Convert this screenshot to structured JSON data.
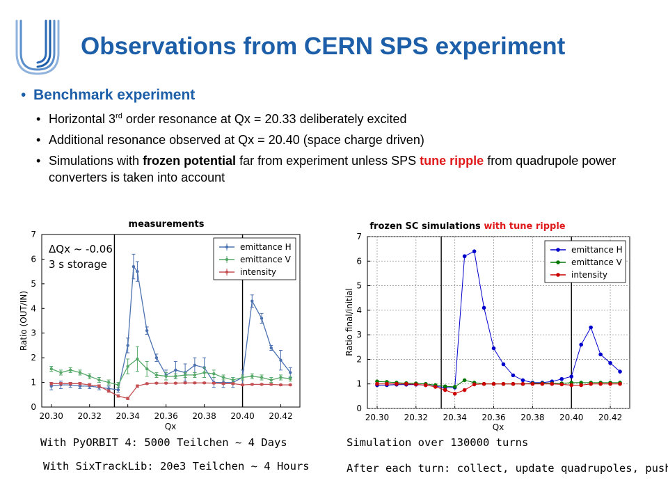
{
  "slide": {
    "title": "Observations from CERN SPS experiment",
    "bullet_main": "Benchmark experiment",
    "sub1_pre": "Horizontal 3",
    "sub1_sup": "rd",
    "sub1_post": " order resonance at Qx = 20.33 deliberately excited",
    "sub2": "Additional resonance observed at Qx = 20.40 (space charge driven)",
    "sub3_a": "Simulations with ",
    "sub3_b": "frozen potential",
    "sub3_c": " far from experiment unless SPS ",
    "sub3_d": "tune ripple",
    "sub3_e": " from quadrupole power converters is taken into account",
    "colors": {
      "title": "#1c5ea8",
      "highlight": "#e01a1a"
    }
  },
  "notes": {
    "left1": "With PyORBIT 4: 5000 Teilchen ~ 4 Days",
    "left2": "With SixTrackLib: 20e3 Teilchen ~ 4 Hours",
    "right1": "Simulation over 130000 turns",
    "right2": "After each turn: collect, update quadrupoles, push!"
  },
  "chart_data": [
    {
      "type": "line",
      "title": "measurements",
      "xlabel": "Qx",
      "ylabel": "Ratio (OUT/IN)",
      "xlim": [
        20.295,
        20.43
      ],
      "ylim": [
        0,
        7
      ],
      "xticks": [
        "20.30",
        "20.32",
        "20.34",
        "20.36",
        "20.38",
        "20.40",
        "20.42"
      ],
      "yticks": [
        "0",
        "1",
        "2",
        "3",
        "4",
        "5",
        "6",
        "7"
      ],
      "annotation_1": "ΔQx ~ -0.06",
      "annotation_2": "3 s storage",
      "vlines": [
        20.333,
        20.4
      ],
      "legend_position": "top-right",
      "series": [
        {
          "name": "emittance H",
          "color": "#4c72b0",
          "x": [
            20.3,
            20.305,
            20.31,
            20.315,
            20.32,
            20.325,
            20.33,
            20.335,
            20.34,
            20.343,
            20.345,
            20.35,
            20.355,
            20.36,
            20.365,
            20.37,
            20.375,
            20.38,
            20.385,
            20.39,
            20.395,
            20.4,
            20.405,
            20.41,
            20.415,
            20.42,
            20.425
          ],
          "y": [
            0.85,
            0.9,
            0.9,
            0.85,
            0.85,
            0.8,
            0.75,
            0.7,
            2.5,
            5.7,
            5.5,
            3.1,
            2.0,
            1.3,
            1.5,
            1.4,
            1.7,
            1.6,
            1.0,
            1.0,
            1.0,
            1.2,
            4.3,
            3.6,
            2.4,
            1.9,
            1.4
          ],
          "err": [
            0.15,
            0.15,
            0.1,
            0.1,
            0.1,
            0.1,
            0.1,
            0.1,
            0.3,
            0.5,
            0.4,
            0.15,
            0.15,
            0.2,
            0.35,
            0.35,
            0.3,
            0.4,
            0.2,
            0.2,
            0.2,
            0.3,
            0.25,
            0.2,
            0.1,
            0.4,
            0.2
          ]
        },
        {
          "name": "emittance V",
          "color": "#55a868",
          "x": [
            20.3,
            20.305,
            20.31,
            20.315,
            20.32,
            20.325,
            20.33,
            20.335,
            20.34,
            20.345,
            20.35,
            20.355,
            20.36,
            20.365,
            20.37,
            20.375,
            20.38,
            20.385,
            20.39,
            20.395,
            20.4,
            20.405,
            20.41,
            20.415,
            20.42,
            20.425
          ],
          "y": [
            1.55,
            1.4,
            1.5,
            1.4,
            1.25,
            1.1,
            1.0,
            0.9,
            1.65,
            1.95,
            1.55,
            1.3,
            1.25,
            1.25,
            1.3,
            1.3,
            1.4,
            1.35,
            1.2,
            1.1,
            1.2,
            1.25,
            1.2,
            1.1,
            1.2,
            1.15
          ],
          "err": [
            0.1,
            0.1,
            0.1,
            0.1,
            0.1,
            0.1,
            0.1,
            0.1,
            0.3,
            0.5,
            0.3,
            0.1,
            0.15,
            0.1,
            0.1,
            0.1,
            0.2,
            0.15,
            0.1,
            0.1,
            0.1,
            0.1,
            0.1,
            0.1,
            0.1,
            0.1
          ]
        },
        {
          "name": "intensity",
          "color": "#c44e52",
          "x": [
            20.3,
            20.305,
            20.31,
            20.315,
            20.32,
            20.325,
            20.33,
            20.335,
            20.34,
            20.345,
            20.35,
            20.355,
            20.36,
            20.365,
            20.37,
            20.375,
            20.38,
            20.385,
            20.39,
            20.395,
            20.4,
            20.405,
            20.41,
            20.415,
            20.42,
            20.425
          ],
          "y": [
            0.95,
            0.95,
            0.95,
            0.95,
            0.9,
            0.85,
            0.65,
            0.45,
            0.35,
            0.85,
            0.95,
            0.97,
            0.97,
            0.97,
            0.98,
            0.98,
            0.98,
            0.97,
            0.95,
            0.95,
            0.9,
            0.92,
            0.92,
            0.92,
            0.9,
            0.9
          ],
          "err": [
            0.05,
            0.05,
            0.05,
            0.05,
            0.05,
            0.05,
            0.05,
            0.05,
            0.05,
            0.05,
            0.03,
            0.03,
            0.03,
            0.03,
            0.03,
            0.03,
            0.03,
            0.03,
            0.03,
            0.03,
            0.03,
            0.03,
            0.03,
            0.03,
            0.03,
            0.03
          ]
        }
      ]
    },
    {
      "type": "line",
      "title_a": "frozen SC simulations ",
      "title_b": "with tune ripple",
      "xlabel": "Qx",
      "ylabel": "Ratio final/initial",
      "xlim": [
        20.295,
        20.43
      ],
      "ylim": [
        0,
        7
      ],
      "xticks": [
        "20.30",
        "20.32",
        "20.34",
        "20.36",
        "20.38",
        "20.40",
        "20.42"
      ],
      "yticks": [
        "0",
        "1",
        "2",
        "3",
        "4",
        "5",
        "6",
        "7"
      ],
      "vlines": [
        20.333,
        20.4
      ],
      "legend_position": "top-right",
      "series": [
        {
          "name": "emittance H",
          "color": "#0000cc",
          "x": [
            20.3,
            20.305,
            20.31,
            20.315,
            20.32,
            20.325,
            20.33,
            20.335,
            20.34,
            20.345,
            20.35,
            20.355,
            20.36,
            20.365,
            20.37,
            20.375,
            20.38,
            20.385,
            20.39,
            20.395,
            20.4,
            20.405,
            20.41,
            20.415,
            20.42,
            20.425
          ],
          "y": [
            0.95,
            0.95,
            0.97,
            0.97,
            0.97,
            0.95,
            0.9,
            0.85,
            0.85,
            6.2,
            6.4,
            4.1,
            2.45,
            1.8,
            1.35,
            1.15,
            1.05,
            1.05,
            1.1,
            1.2,
            1.3,
            2.6,
            3.3,
            2.2,
            1.85,
            1.5
          ]
        },
        {
          "name": "emittance V",
          "color": "#007700",
          "x": [
            20.3,
            20.305,
            20.31,
            20.315,
            20.32,
            20.325,
            20.33,
            20.335,
            20.34,
            20.345,
            20.35,
            20.355,
            20.36,
            20.365,
            20.37,
            20.375,
            20.38,
            20.385,
            20.39,
            20.395,
            20.4,
            20.405,
            20.41,
            20.415,
            20.42,
            20.425
          ],
          "y": [
            1.1,
            1.08,
            1.05,
            1.03,
            1.02,
            1.0,
            0.95,
            0.9,
            0.88,
            1.15,
            1.05,
            1.0,
            1.0,
            1.0,
            1.0,
            1.0,
            1.02,
            1.02,
            1.02,
            1.02,
            1.05,
            1.05,
            1.05,
            1.05,
            1.05,
            1.05
          ]
        },
        {
          "name": "intensity",
          "color": "#cc0000",
          "x": [
            20.3,
            20.305,
            20.31,
            20.315,
            20.32,
            20.325,
            20.33,
            20.335,
            20.34,
            20.345,
            20.35,
            20.355,
            20.36,
            20.365,
            20.37,
            20.375,
            20.38,
            20.385,
            20.39,
            20.395,
            20.4,
            20.405,
            20.41,
            20.415,
            20.42,
            20.425
          ],
          "y": [
            1.0,
            1.0,
            1.0,
            1.0,
            0.98,
            0.95,
            0.88,
            0.75,
            0.6,
            0.75,
            0.98,
            1.0,
            1.0,
            1.0,
            1.0,
            1.0,
            1.0,
            1.0,
            1.0,
            0.98,
            0.95,
            0.95,
            1.0,
            1.0,
            1.0,
            1.0
          ]
        }
      ]
    }
  ]
}
